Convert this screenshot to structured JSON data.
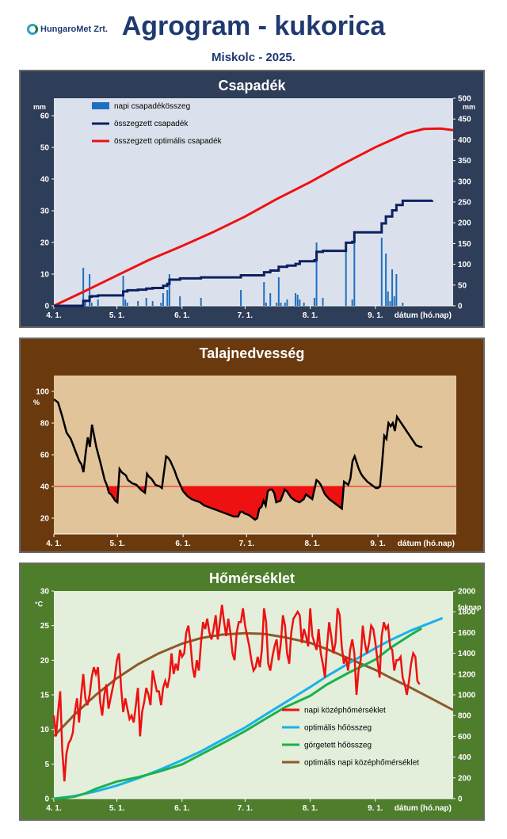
{
  "header": {
    "logo_text": "HungaroMet Zrt.",
    "title": "Agrogram - kukorica",
    "subtitle": "Miskolc - 2025."
  },
  "colors": {
    "rain_panel_bg": "#2e3d58",
    "soil_panel_bg": "#6a3a0e",
    "temp_panel_bg": "#4e7d2c",
    "rain_plot_bg": "#dbe1ec",
    "soil_plot_bg": "#e1c49a",
    "temp_plot_bg": "#e3eedb",
    "daily_rain": "#1f6fc0",
    "cumulative_rain": "#0d2060",
    "optimal_rain": "#ee1111",
    "soil_line": "#000000",
    "soil_deficit": "#ee1111",
    "daily_temp": "#ee1111",
    "optimal_heat": "#19b2e8",
    "rolling_heat": "#19b24b",
    "optimal_daily_temp": "#8b5a2b"
  },
  "chart_data": [
    {
      "id": "rain",
      "type": "bar",
      "title": "Csapadék",
      "y_unit": "mm",
      "y2_unit": "mm",
      "xlabel": "dátum (hó.nap)",
      "ylim": [
        0,
        60
      ],
      "y2lim": [
        0,
        500
      ],
      "yticks": [
        0,
        10,
        20,
        30,
        40,
        50,
        60
      ],
      "y2ticks": [
        0,
        50,
        100,
        150,
        200,
        250,
        300,
        350,
        400,
        450,
        500
      ],
      "xlim": [
        0,
        190
      ],
      "xticks": [
        {
          "day": 0,
          "label": "4. 1."
        },
        {
          "day": 30,
          "label": "5. 1."
        },
        {
          "day": 61,
          "label": "6. 1."
        },
        {
          "day": 91,
          "label": "7. 1."
        },
        {
          "day": 122,
          "label": "8. 1."
        },
        {
          "day": 153,
          "label": "9. 1."
        }
      ],
      "legend": [
        "napi csapadékösszeg",
        "összegzett csapadék",
        "összegzett optimális csapadék"
      ],
      "daily_bars": [
        {
          "day": 14,
          "value": 12.0
        },
        {
          "day": 15,
          "value": 2.0
        },
        {
          "day": 17,
          "value": 10.0
        },
        {
          "day": 18,
          "value": 1.0
        },
        {
          "day": 21,
          "value": 2.0
        },
        {
          "day": 33,
          "value": 9.5
        },
        {
          "day": 34,
          "value": 2.0
        },
        {
          "day": 35,
          "value": 1.0
        },
        {
          "day": 40,
          "value": 1.5
        },
        {
          "day": 44,
          "value": 2.5
        },
        {
          "day": 47,
          "value": 1.5
        },
        {
          "day": 51,
          "value": 1.0
        },
        {
          "day": 52,
          "value": 4.0
        },
        {
          "day": 54,
          "value": 5.0
        },
        {
          "day": 55,
          "value": 10.0
        },
        {
          "day": 60,
          "value": 3.0
        },
        {
          "day": 70,
          "value": 2.5
        },
        {
          "day": 89,
          "value": 5.0
        },
        {
          "day": 100,
          "value": 7.5
        },
        {
          "day": 101,
          "value": 1.0
        },
        {
          "day": 103,
          "value": 4.0
        },
        {
          "day": 106,
          "value": 1.0
        },
        {
          "day": 107,
          "value": 9.0
        },
        {
          "day": 108,
          "value": 1.0
        },
        {
          "day": 110,
          "value": 1.0
        },
        {
          "day": 111,
          "value": 2.0
        },
        {
          "day": 115,
          "value": 4.0
        },
        {
          "day": 116,
          "value": 3.5
        },
        {
          "day": 117,
          "value": 2.0
        },
        {
          "day": 119,
          "value": 1.0
        },
        {
          "day": 124,
          "value": 2.5
        },
        {
          "day": 125,
          "value": 20.0
        },
        {
          "day": 128,
          "value": 2.5
        },
        {
          "day": 139,
          "value": 19.5
        },
        {
          "day": 142,
          "value": 2.0
        },
        {
          "day": 143,
          "value": 23.0
        },
        {
          "day": 156,
          "value": 21.5
        },
        {
          "day": 158,
          "value": 16.5
        },
        {
          "day": 159,
          "value": 4.5
        },
        {
          "day": 160,
          "value": 1.5
        },
        {
          "day": 161,
          "value": 11.5
        },
        {
          "day": 162,
          "value": 3.0
        },
        {
          "day": 163,
          "value": 10.0
        },
        {
          "day": 166,
          "value": 1.0
        }
      ],
      "cumulative": {
        "x": [
          0,
          14,
          17,
          18,
          21,
          33,
          35,
          40,
          44,
          47,
          52,
          54,
          55,
          60,
          70,
          89,
          100,
          103,
          107,
          111,
          115,
          117,
          124,
          125,
          128,
          139,
          142,
          143,
          156,
          158,
          161,
          163,
          166,
          180
        ],
        "y": [
          0,
          12,
          22,
          23,
          25,
          34.5,
          37.5,
          39,
          41.5,
          43,
          48,
          53,
          63,
          66,
          68.5,
          73.5,
          81,
          85,
          94,
          97,
          101,
          107.5,
          110,
          130,
          132.5,
          152,
          154,
          177,
          198.5,
          215,
          230,
          243,
          253,
          254
        ]
      },
      "optimal_cumulative": {
        "x": [
          0,
          15,
          30,
          45,
          61,
          76,
          91,
          106,
          122,
          137,
          153,
          168,
          176,
          184,
          190
        ],
        "y": [
          0,
          36,
          73,
          110,
          144,
          178,
          215,
          257,
          298,
          340,
          382,
          416,
          426,
          427,
          423
        ]
      }
    },
    {
      "id": "soil",
      "type": "line",
      "title": "Talajnedvesség",
      "y_unit": "%",
      "xlabel": "dátum (hó.nap)",
      "ylim": [
        10,
        110
      ],
      "yticks": [
        20,
        40,
        60,
        80,
        100
      ],
      "threshold": 40,
      "xlim": [
        0,
        190
      ],
      "xticks": [
        {
          "day": 0,
          "label": "4. 1."
        },
        {
          "day": 30,
          "label": "5. 1."
        },
        {
          "day": 61,
          "label": "6. 1."
        },
        {
          "day": 91,
          "label": "7. 1."
        },
        {
          "day": 122,
          "label": "8. 1."
        },
        {
          "day": 153,
          "label": "9. 1."
        }
      ],
      "x": [
        0,
        2,
        4,
        6,
        8,
        10,
        12,
        13,
        14,
        15,
        16,
        17,
        18,
        19,
        20,
        22,
        24,
        25,
        26,
        27,
        28,
        29,
        30,
        31,
        32,
        33,
        34,
        35,
        37,
        39,
        41,
        43,
        44,
        45,
        46,
        47,
        48,
        50,
        51,
        52,
        53,
        54,
        55,
        56,
        57,
        58,
        59,
        60,
        61,
        63,
        65,
        67,
        69,
        71,
        73,
        75,
        77,
        79,
        81,
        83,
        85,
        87,
        88,
        89,
        90,
        92,
        94,
        95,
        96,
        97,
        98,
        99,
        100,
        101,
        102,
        103,
        104,
        105,
        107,
        109,
        110,
        111,
        112,
        114,
        116,
        118,
        119,
        120,
        121,
        122,
        124,
        125,
        126,
        127,
        128,
        130,
        132,
        134,
        136,
        137,
        138,
        139,
        140,
        141,
        142,
        143,
        144,
        145,
        146,
        148,
        150,
        152,
        153,
        154,
        155,
        156,
        157,
        158,
        159,
        160,
        161,
        162,
        163,
        164,
        165,
        167,
        169,
        171,
        173,
        174
      ],
      "values": [
        95,
        93,
        84,
        74,
        70,
        63,
        56,
        54,
        49,
        61,
        71,
        65,
        79,
        72,
        65,
        55,
        44,
        41,
        36,
        35,
        33,
        31,
        30,
        51,
        49,
        48,
        47,
        44,
        42,
        41,
        38,
        36,
        48,
        46,
        45,
        43,
        41,
        40,
        39,
        49,
        59,
        58,
        56,
        53,
        50,
        46,
        43,
        40,
        37,
        34,
        32,
        31,
        30,
        28,
        27,
        26,
        25,
        24,
        23,
        22,
        21,
        21,
        24,
        24,
        23,
        22,
        20,
        19,
        20,
        26,
        27,
        31,
        28,
        37,
        38,
        38,
        36,
        30,
        31,
        38,
        37,
        35,
        33,
        31,
        30,
        32,
        35,
        34,
        33,
        32,
        44,
        43,
        41,
        38,
        35,
        32,
        30,
        28,
        26,
        43,
        42,
        41,
        45,
        56,
        59,
        55,
        51,
        48,
        46,
        43,
        41,
        39,
        39,
        40,
        55,
        72,
        70,
        80,
        78,
        80,
        75,
        84,
        82,
        80,
        78,
        74,
        70,
        66,
        65,
        65
      ]
    },
    {
      "id": "temp",
      "type": "line",
      "title": "Hőmérséklet",
      "y_unit": "°C",
      "y2_unit": "foknap",
      "xlabel": "dátum (hó.nap)",
      "ylim": [
        0,
        30
      ],
      "y2lim": [
        0,
        2000
      ],
      "yticks": [
        0,
        5,
        10,
        15,
        20,
        25,
        30
      ],
      "y2ticks": [
        0,
        200,
        400,
        600,
        800,
        1000,
        1200,
        1400,
        1600,
        1800,
        2000
      ],
      "xlim": [
        0,
        190
      ],
      "xticks": [
        {
          "day": 0,
          "label": "4. 1."
        },
        {
          "day": 30,
          "label": "5. 1."
        },
        {
          "day": 61,
          "label": "6. 1."
        },
        {
          "day": 91,
          "label": "7. 1."
        },
        {
          "day": 122,
          "label": "8. 1."
        },
        {
          "day": 153,
          "label": "9. 1."
        }
      ],
      "legend": [
        "napi középhőmérséklet",
        "optimális hőösszeg",
        "görgetett hőösszeg",
        "optimális napi középhőmérséklet"
      ],
      "daily_temp": {
        "x": [
          0,
          1,
          2,
          3,
          4,
          5,
          6,
          7,
          8,
          9,
          10,
          11,
          12,
          13,
          14,
          15,
          16,
          17,
          18,
          19,
          20,
          21,
          22,
          23,
          24,
          25,
          26,
          27,
          28,
          29,
          30,
          31,
          32,
          33,
          34,
          35,
          36,
          37,
          38,
          39,
          40,
          41,
          42,
          43,
          44,
          45,
          46,
          47,
          48,
          49,
          50,
          51,
          52,
          53,
          54,
          55,
          56,
          57,
          58,
          59,
          60,
          61,
          62,
          63,
          64,
          65,
          66,
          67,
          68,
          69,
          70,
          71,
          72,
          73,
          74,
          75,
          76,
          77,
          78,
          79,
          80,
          81,
          82,
          83,
          84,
          85,
          86,
          87,
          88,
          89,
          90,
          91,
          92,
          93,
          94,
          95,
          96,
          97,
          98,
          99,
          100,
          101,
          102,
          103,
          104,
          105,
          106,
          107,
          108,
          109,
          110,
          111,
          112,
          113,
          114,
          115,
          116,
          117,
          118,
          119,
          120,
          121,
          122,
          123,
          124,
          125,
          126,
          127,
          128,
          129,
          130,
          131,
          132,
          133,
          134,
          135,
          136,
          137,
          138,
          139,
          140,
          141,
          142,
          143,
          144,
          145,
          146,
          147,
          148,
          149,
          150,
          151,
          152,
          153,
          154,
          155,
          156,
          157,
          158,
          159,
          160,
          161,
          162,
          163,
          164,
          165,
          166,
          167,
          168,
          169,
          170,
          171,
          172,
          173,
          174
        ],
        "values": [
          12.0,
          9.0,
          12.5,
          15.5,
          7.0,
          2.5,
          6.5,
          8.0,
          8.5,
          9.5,
          12.5,
          14.5,
          11.0,
          15.0,
          18.0,
          14.5,
          13.5,
          15.0,
          17.5,
          19.0,
          18.0,
          19.0,
          14.0,
          12.0,
          15.0,
          16.5,
          13.0,
          14.5,
          16.0,
          17.5,
          20.0,
          21.0,
          16.0,
          12.5,
          14.5,
          13.0,
          11.5,
          12.0,
          11.0,
          13.5,
          16.0,
          9.0,
          12.5,
          14.0,
          16.0,
          15.0,
          13.5,
          18.5,
          17.0,
          15.5,
          15.5,
          13.5,
          16.0,
          17.0,
          16.0,
          17.5,
          21.0,
          18.0,
          19.5,
          18.5,
          21.5,
          20.5,
          21.0,
          24.0,
          25.0,
          22.5,
          19.0,
          17.5,
          20.0,
          18.5,
          22.5,
          25.5,
          24.5,
          26.0,
          24.0,
          23.0,
          24.5,
          26.5,
          23.0,
          25.5,
          28.0,
          25.5,
          23.5,
          26.0,
          24.0,
          21.0,
          20.0,
          24.0,
          25.5,
          25.5,
          27.5,
          25.0,
          23.5,
          22.0,
          20.0,
          18.5,
          19.0,
          20.5,
          19.0,
          21.5,
          27.5,
          25.5,
          19.5,
          18.5,
          20.5,
          22.0,
          23.0,
          20.0,
          22.5,
          26.5,
          25.0,
          21.0,
          19.5,
          24.0,
          26.0,
          26.5,
          27.0,
          26.5,
          22.5,
          24.5,
          23.5,
          22.0,
          27.5,
          23.5,
          22.5,
          21.5,
          24.5,
          21.0,
          19.5,
          17.5,
          22.0,
          25.5,
          23.5,
          21.0,
          22.5,
          27.5,
          26.5,
          22.0,
          19.5,
          20.5,
          18.5,
          21.5,
          23.0,
          21.0,
          15.0,
          18.5,
          20.0,
          25.0,
          22.5,
          21.0,
          22.5,
          25.0,
          24.5,
          22.5,
          20.0,
          17.5,
          23.5,
          25.5,
          24.5,
          25.0,
          22.0,
          21.5,
          18.5,
          20.0,
          20.0,
          20.5,
          17.5,
          16.5,
          15.0,
          17.0,
          19.5,
          21.0,
          20.5,
          17.0,
          16.5
        ]
      },
      "optimal_heat_sum": {
        "x": [
          0,
          10,
          20,
          30,
          40,
          50,
          61,
          70,
          80,
          91,
          100,
          110,
          122,
          130,
          140,
          153,
          160,
          170,
          180,
          185
        ],
        "y": [
          0,
          25,
          70,
          125,
          195,
          275,
          370,
          455,
          565,
          685,
          800,
          925,
          1075,
          1180,
          1300,
          1450,
          1525,
          1620,
          1700,
          1740
        ]
      },
      "rolling_heat_sum": {
        "x": [
          0,
          5,
          10,
          15,
          20,
          25,
          30,
          40,
          50,
          61,
          70,
          80,
          91,
          100,
          110,
          122,
          130,
          140,
          153,
          160,
          170,
          175
        ],
        "y": [
          0,
          5,
          20,
          50,
          95,
          130,
          165,
          205,
          260,
          330,
          425,
          530,
          650,
          760,
          880,
          990,
          1100,
          1210,
          1340,
          1450,
          1580,
          1640
        ]
      },
      "optimal_daily_temp": {
        "x": [
          0,
          10,
          20,
          30,
          40,
          50,
          61,
          70,
          80,
          91,
          100,
          110,
          122,
          130,
          140,
          153,
          160,
          170,
          180,
          190
        ],
        "y": [
          9.0,
          12.2,
          15.0,
          17.4,
          19.4,
          21.0,
          22.4,
          23.2,
          23.7,
          23.9,
          23.8,
          23.3,
          22.5,
          21.6,
          20.3,
          18.6,
          17.5,
          16.0,
          14.4,
          12.8
        ]
      }
    }
  ]
}
